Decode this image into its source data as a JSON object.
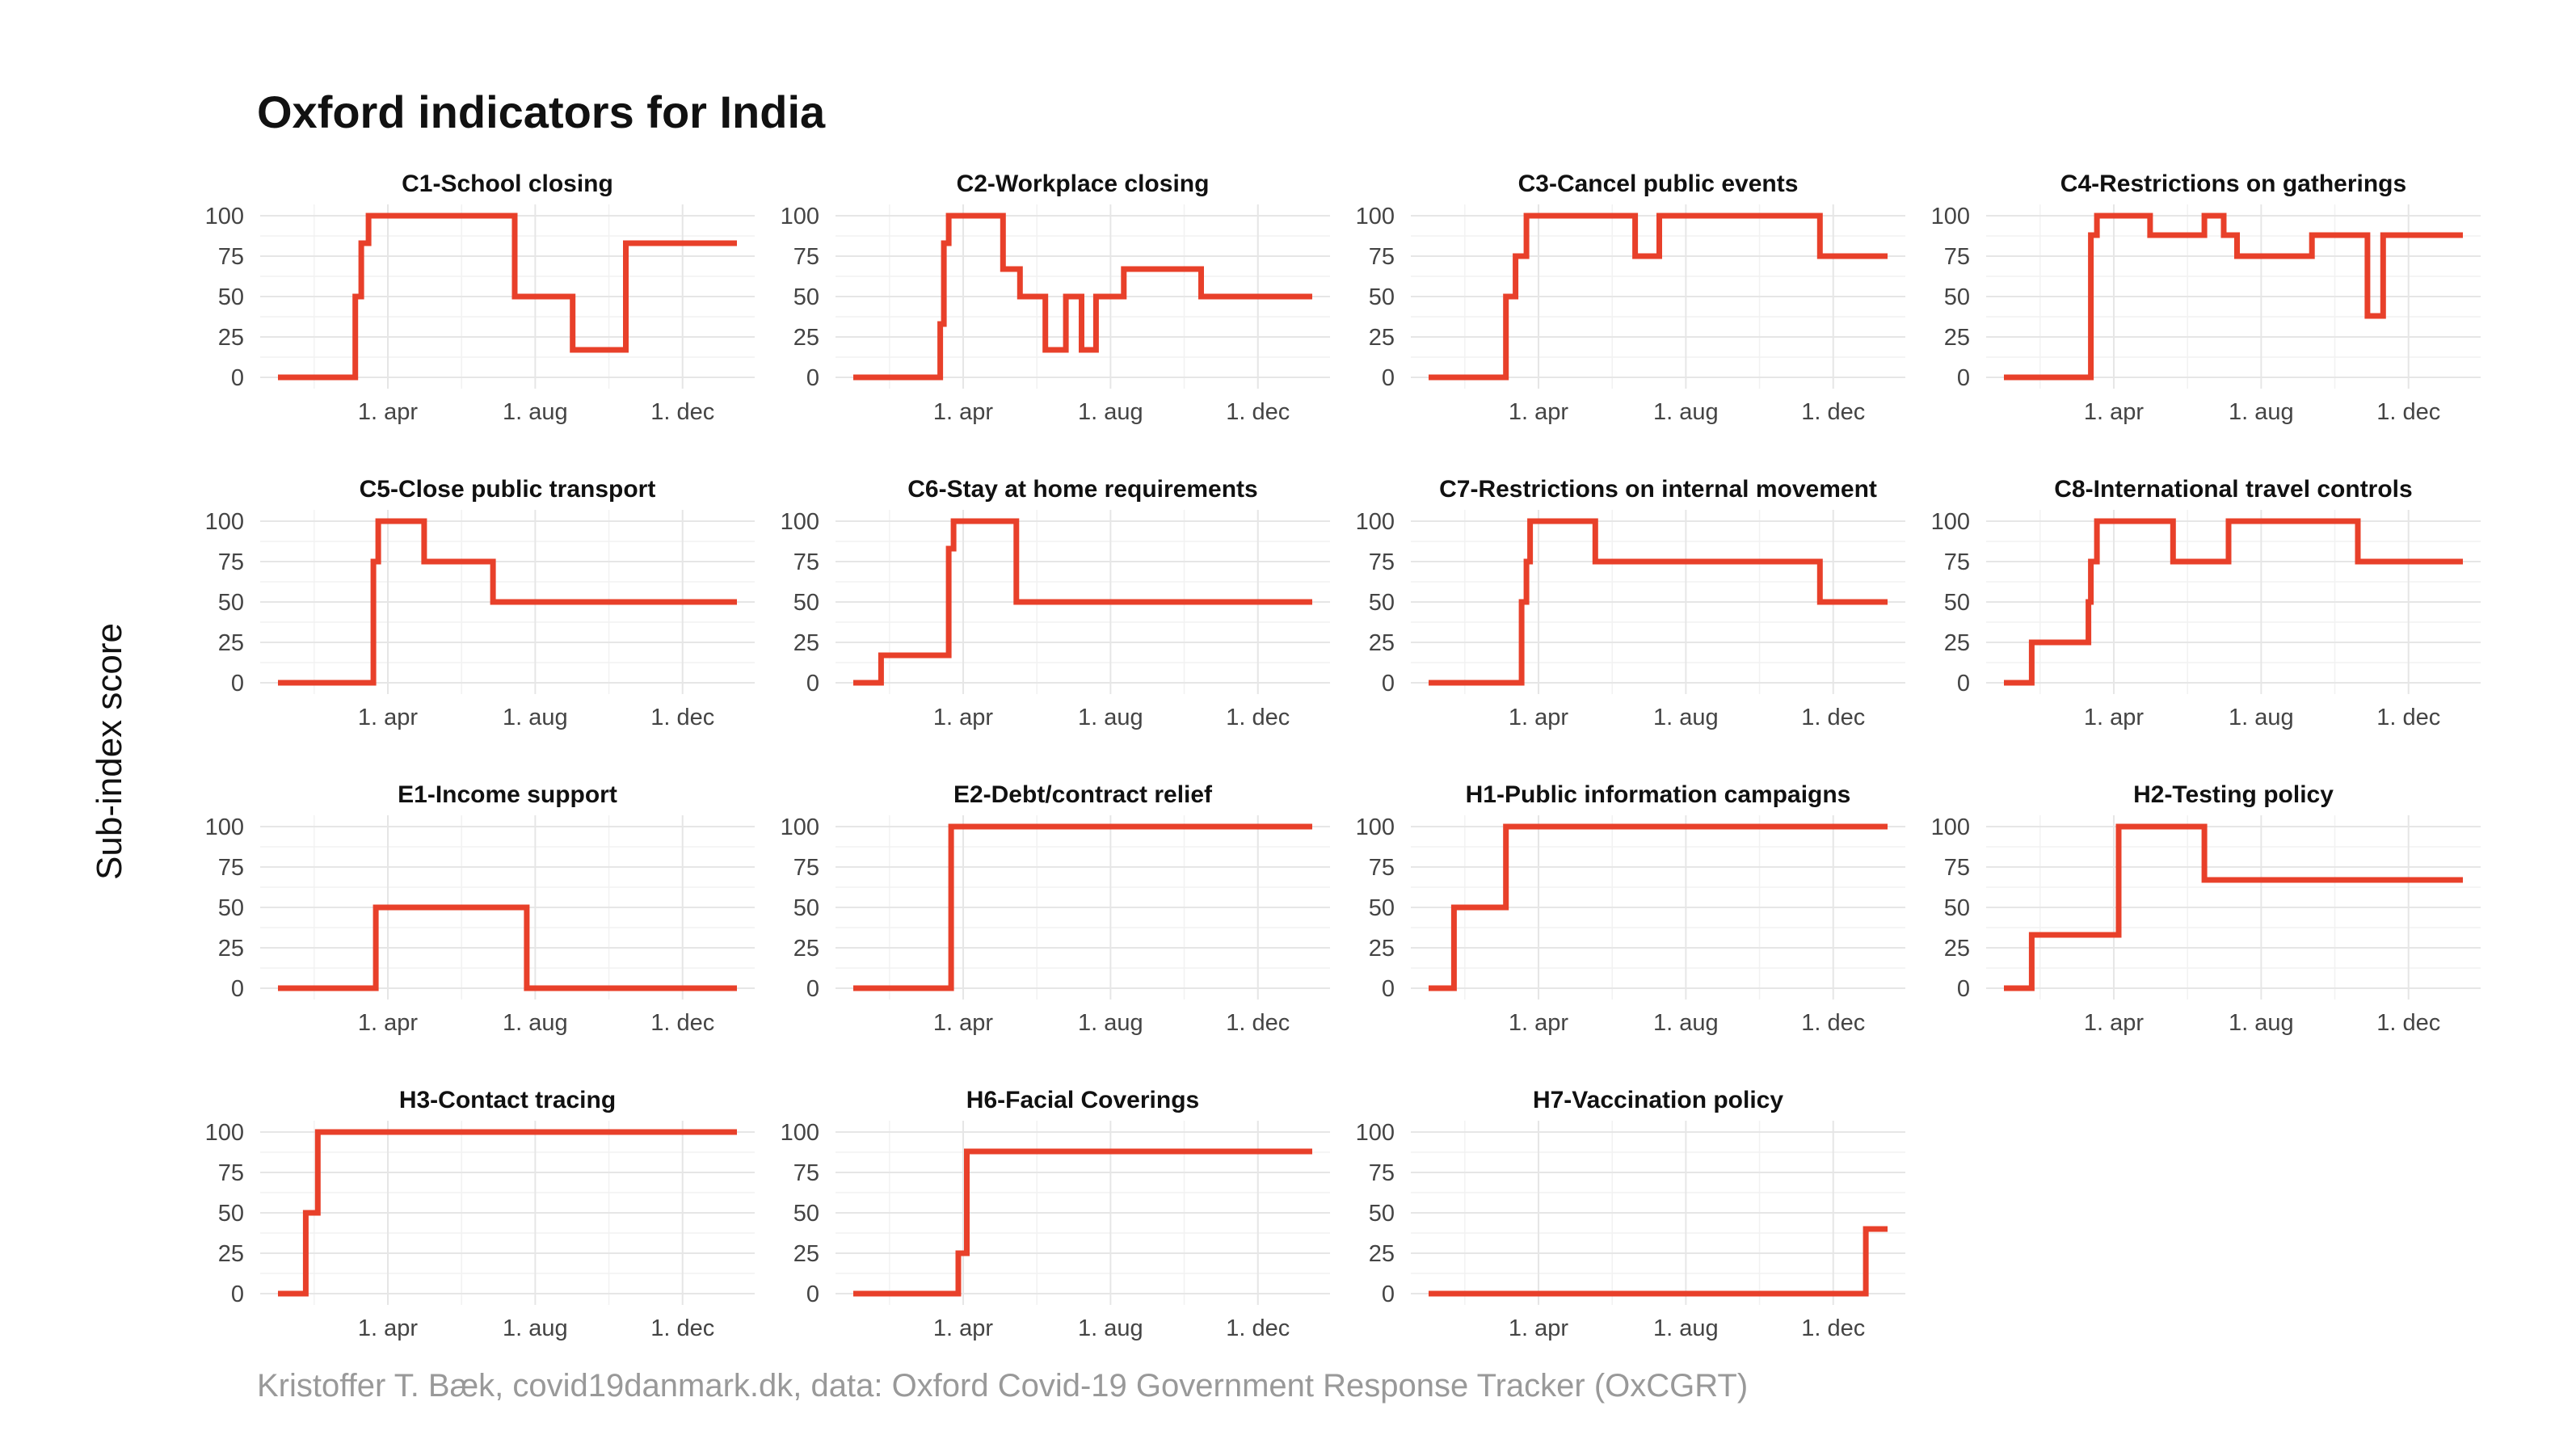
{
  "title": "Oxford indicators for India",
  "caption": "Kristoffer T. Bæk, covid19danmark.dk, data: Oxford Covid-19 Government Response Tracker (OxCGRT)",
  "chart_data": {
    "type": "line",
    "step": true,
    "ylabel": "Sub-index score",
    "ylim": [
      0,
      100
    ],
    "yticks": [
      0,
      25,
      50,
      75,
      100
    ],
    "xlim": [
      "2020-01-01",
      "2021-01-15"
    ],
    "xticks": [
      {
        "date": "2020-04-01",
        "label": "1. apr"
      },
      {
        "date": "2020-08-01",
        "label": "1. aug"
      },
      {
        "date": "2020-12-01",
        "label": "1. dec"
      }
    ],
    "grid": true,
    "line_color": "#e8402a",
    "panels": [
      {
        "title": "C1-School closing",
        "points": [
          [
            "2020-01-01",
            0
          ],
          [
            "2020-03-05",
            50
          ],
          [
            "2020-03-10",
            83
          ],
          [
            "2020-03-16",
            100
          ],
          [
            "2020-07-15",
            50
          ],
          [
            "2020-09-01",
            17
          ],
          [
            "2020-10-15",
            83
          ],
          [
            "2021-01-15",
            83
          ]
        ]
      },
      {
        "title": "C2-Workplace closing",
        "points": [
          [
            "2020-01-01",
            0
          ],
          [
            "2020-03-13",
            33
          ],
          [
            "2020-03-16",
            83
          ],
          [
            "2020-03-20",
            100
          ],
          [
            "2020-05-04",
            67
          ],
          [
            "2020-05-18",
            50
          ],
          [
            "2020-06-08",
            17
          ],
          [
            "2020-06-25",
            50
          ],
          [
            "2020-07-08",
            17
          ],
          [
            "2020-07-20",
            50
          ],
          [
            "2020-08-12",
            67
          ],
          [
            "2020-10-15",
            50
          ],
          [
            "2021-01-15",
            50
          ]
        ]
      },
      {
        "title": "C3-Cancel public events",
        "points": [
          [
            "2020-01-01",
            0
          ],
          [
            "2020-03-05",
            50
          ],
          [
            "2020-03-13",
            75
          ],
          [
            "2020-03-22",
            100
          ],
          [
            "2020-06-20",
            75
          ],
          [
            "2020-07-10",
            100
          ],
          [
            "2020-11-20",
            75
          ],
          [
            "2021-01-15",
            75
          ]
        ]
      },
      {
        "title": "C4-Restrictions on gatherings",
        "points": [
          [
            "2020-01-01",
            0
          ],
          [
            "2020-03-13",
            88
          ],
          [
            "2020-03-18",
            100
          ],
          [
            "2020-05-01",
            88
          ],
          [
            "2020-06-15",
            100
          ],
          [
            "2020-07-01",
            88
          ],
          [
            "2020-07-12",
            75
          ],
          [
            "2020-09-12",
            88
          ],
          [
            "2020-10-28",
            38
          ],
          [
            "2020-11-10",
            88
          ],
          [
            "2021-01-15",
            88
          ]
        ]
      },
      {
        "title": "C5-Close public transport",
        "points": [
          [
            "2020-01-01",
            0
          ],
          [
            "2020-03-20",
            75
          ],
          [
            "2020-03-24",
            100
          ],
          [
            "2020-05-01",
            75
          ],
          [
            "2020-06-27",
            50
          ],
          [
            "2021-01-15",
            50
          ]
        ]
      },
      {
        "title": "C6-Stay at home requirements",
        "points": [
          [
            "2020-01-01",
            0
          ],
          [
            "2020-01-24",
            17
          ],
          [
            "2020-03-20",
            83
          ],
          [
            "2020-03-24",
            100
          ],
          [
            "2020-05-15",
            50
          ],
          [
            "2021-01-15",
            50
          ]
        ]
      },
      {
        "title": "C7-Restrictions on internal movement",
        "points": [
          [
            "2020-01-01",
            0
          ],
          [
            "2020-03-18",
            50
          ],
          [
            "2020-03-22",
            75
          ],
          [
            "2020-03-25",
            100
          ],
          [
            "2020-05-18",
            75
          ],
          [
            "2020-11-20",
            50
          ],
          [
            "2021-01-15",
            50
          ]
        ]
      },
      {
        "title": "C8-International travel controls",
        "points": [
          [
            "2020-01-01",
            0
          ],
          [
            "2020-01-24",
            25
          ],
          [
            "2020-03-11",
            50
          ],
          [
            "2020-03-13",
            75
          ],
          [
            "2020-03-18",
            100
          ],
          [
            "2020-05-20",
            75
          ],
          [
            "2020-07-05",
            100
          ],
          [
            "2020-10-20",
            75
          ],
          [
            "2021-01-15",
            75
          ]
        ]
      },
      {
        "title": "E1-Income support",
        "points": [
          [
            "2020-01-01",
            0
          ],
          [
            "2020-03-22",
            50
          ],
          [
            "2020-07-25",
            0
          ],
          [
            "2021-01-15",
            0
          ]
        ]
      },
      {
        "title": "E2-Debt/contract relief",
        "points": [
          [
            "2020-01-01",
            0
          ],
          [
            "2020-03-22",
            100
          ],
          [
            "2021-01-15",
            100
          ]
        ]
      },
      {
        "title": "H1-Public information campaigns",
        "points": [
          [
            "2020-01-01",
            0
          ],
          [
            "2020-01-22",
            50
          ],
          [
            "2020-03-05",
            100
          ],
          [
            "2021-01-15",
            100
          ]
        ]
      },
      {
        "title": "H2-Testing policy",
        "points": [
          [
            "2020-01-01",
            0
          ],
          [
            "2020-01-24",
            33
          ],
          [
            "2020-04-05",
            100
          ],
          [
            "2020-06-15",
            67
          ],
          [
            "2021-01-15",
            67
          ]
        ]
      },
      {
        "title": "H3-Contact tracing",
        "points": [
          [
            "2020-01-01",
            0
          ],
          [
            "2020-01-24",
            50
          ],
          [
            "2020-02-03",
            100
          ],
          [
            "2021-01-15",
            100
          ]
        ]
      },
      {
        "title": "H6-Facial Coverings",
        "points": [
          [
            "2020-01-01",
            0
          ],
          [
            "2020-03-28",
            25
          ],
          [
            "2020-04-04",
            88
          ],
          [
            "2021-01-15",
            88
          ]
        ]
      },
      {
        "title": "H7-Vaccination policy",
        "points": [
          [
            "2020-01-01",
            0
          ],
          [
            "2020-12-28",
            40
          ],
          [
            "2021-01-15",
            40
          ]
        ]
      }
    ]
  }
}
